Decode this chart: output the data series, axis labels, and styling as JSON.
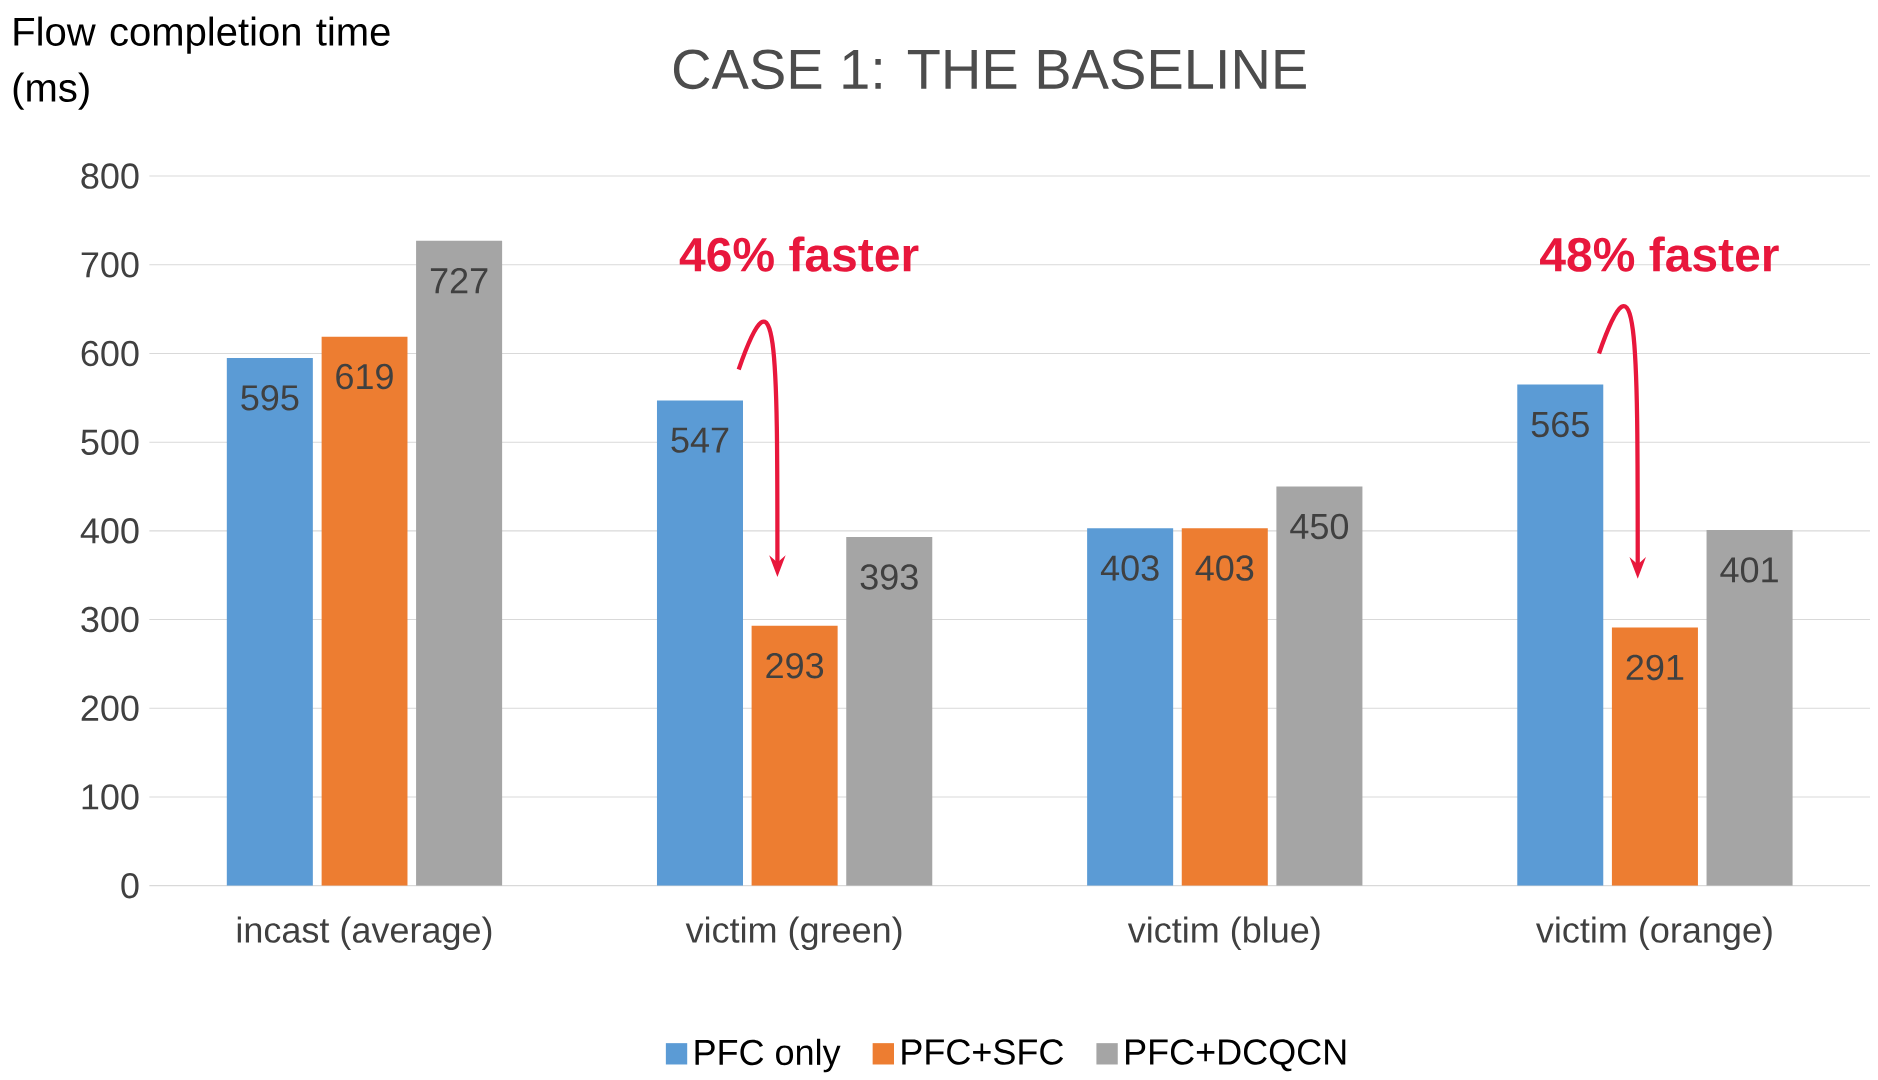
{
  "chart_data": {
    "type": "bar",
    "title": "CASE 1: THE BASELINE",
    "ylabel": "Flow completion time (ms)",
    "categories": [
      "incast (average)",
      "victim (green)",
      "victim (blue)",
      "victim (orange)"
    ],
    "series": [
      {
        "name": "PFC only",
        "color": "#5b9bd5",
        "values": [
          595,
          547,
          403,
          565
        ]
      },
      {
        "name": "PFC+SFC",
        "color": "#ed7d31",
        "values": [
          619,
          293,
          403,
          291
        ]
      },
      {
        "name": "PFC+DCQCN",
        "color": "#a5a5a5",
        "values": [
          727,
          393,
          450,
          401
        ]
      }
    ],
    "ylim": [
      0,
      800
    ],
    "yticks": [
      0,
      100,
      200,
      300,
      400,
      500,
      600,
      700,
      800
    ],
    "grid": "y",
    "legend": "bottom",
    "data_labels": true,
    "annotations": [
      "46% faster",
      "48% faster"
    ]
  }
}
